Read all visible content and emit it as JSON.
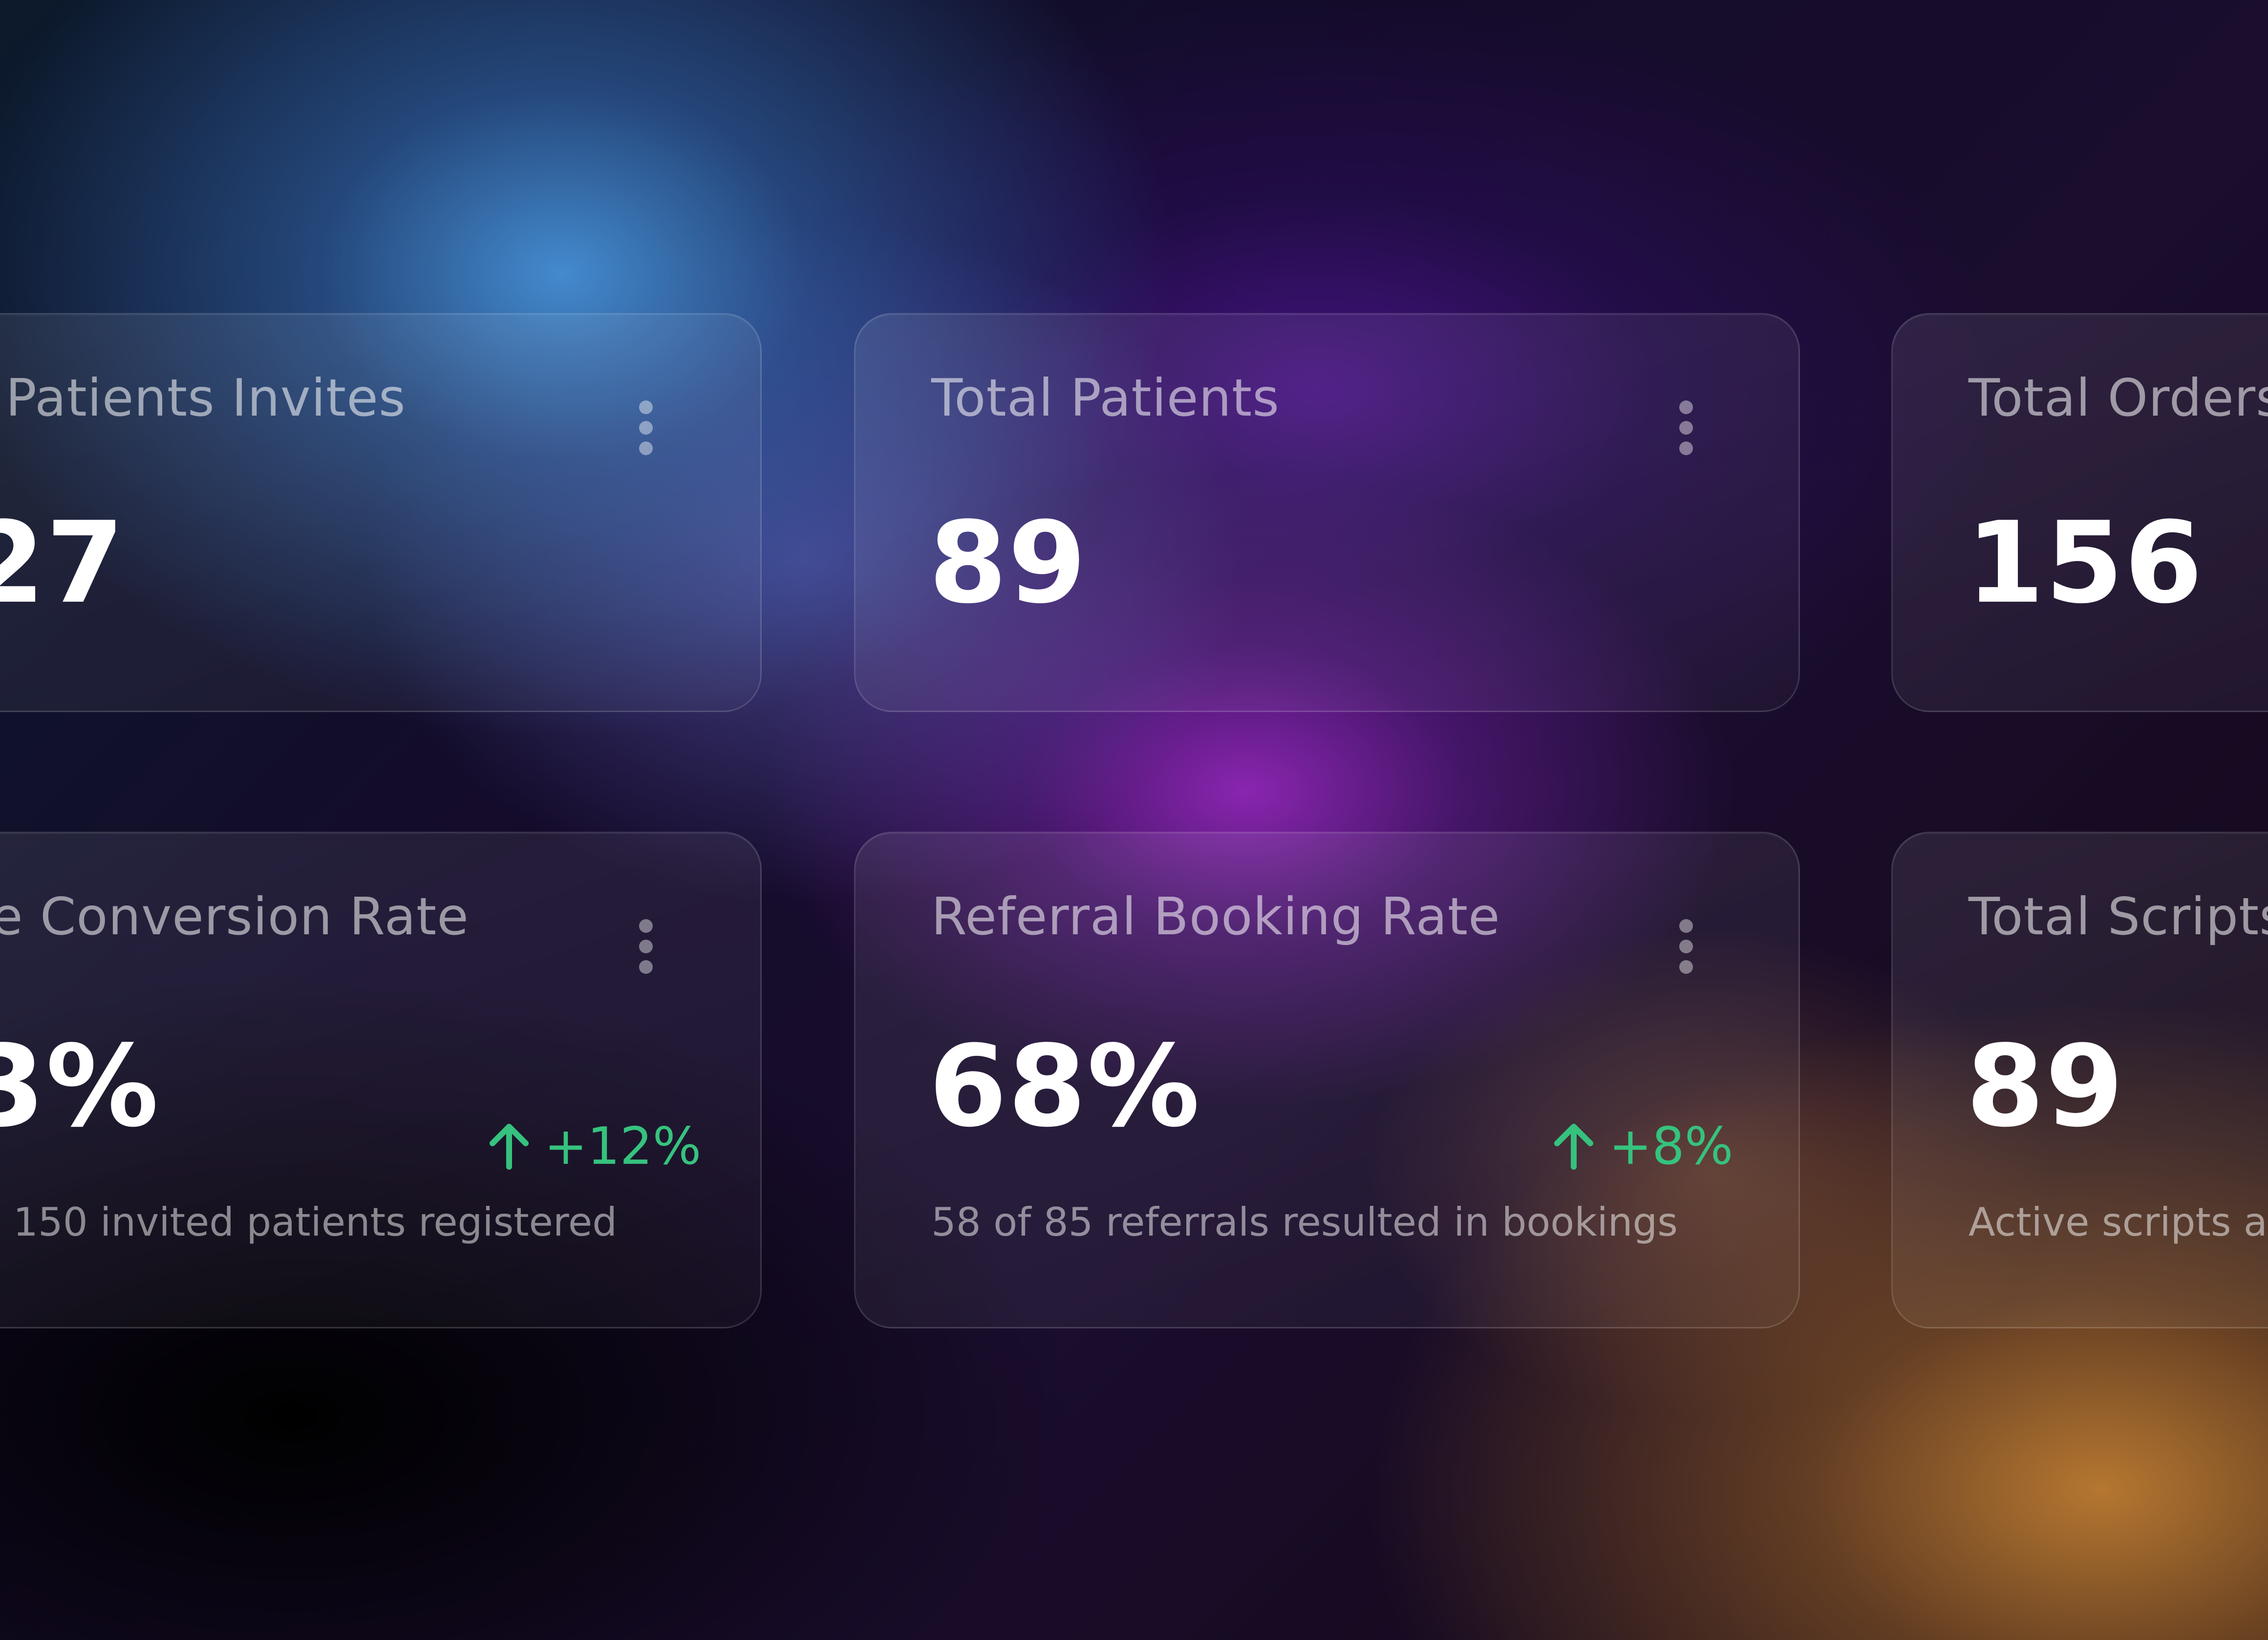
{
  "accent": {
    "trend_up": "#36c27e"
  },
  "cards": {
    "invites": {
      "title": "l Patients Invites",
      "value": "27",
      "menu_icon": "more-vertical-icon"
    },
    "total_patients": {
      "title": "Total Patients",
      "value": "89",
      "menu_icon": "more-vertical-icon"
    },
    "total_orders": {
      "title": "Total Orders",
      "value": "156"
    },
    "conversion": {
      "title": "e Conversion Rate",
      "value": "3%",
      "trend": "+12%",
      "trend_icon": "arrow-up-icon",
      "caption": "150 invited patients registered",
      "menu_icon": "more-vertical-icon"
    },
    "referral": {
      "title": "Referral Booking Rate",
      "value": "68%",
      "trend": "+8%",
      "trend_icon": "arrow-up-icon",
      "caption": "58 of 85 referrals resulted in bookings",
      "menu_icon": "more-vertical-icon"
    },
    "scripts": {
      "title": "Total Scripts",
      "value": "89",
      "caption": "Active scripts acr"
    }
  }
}
